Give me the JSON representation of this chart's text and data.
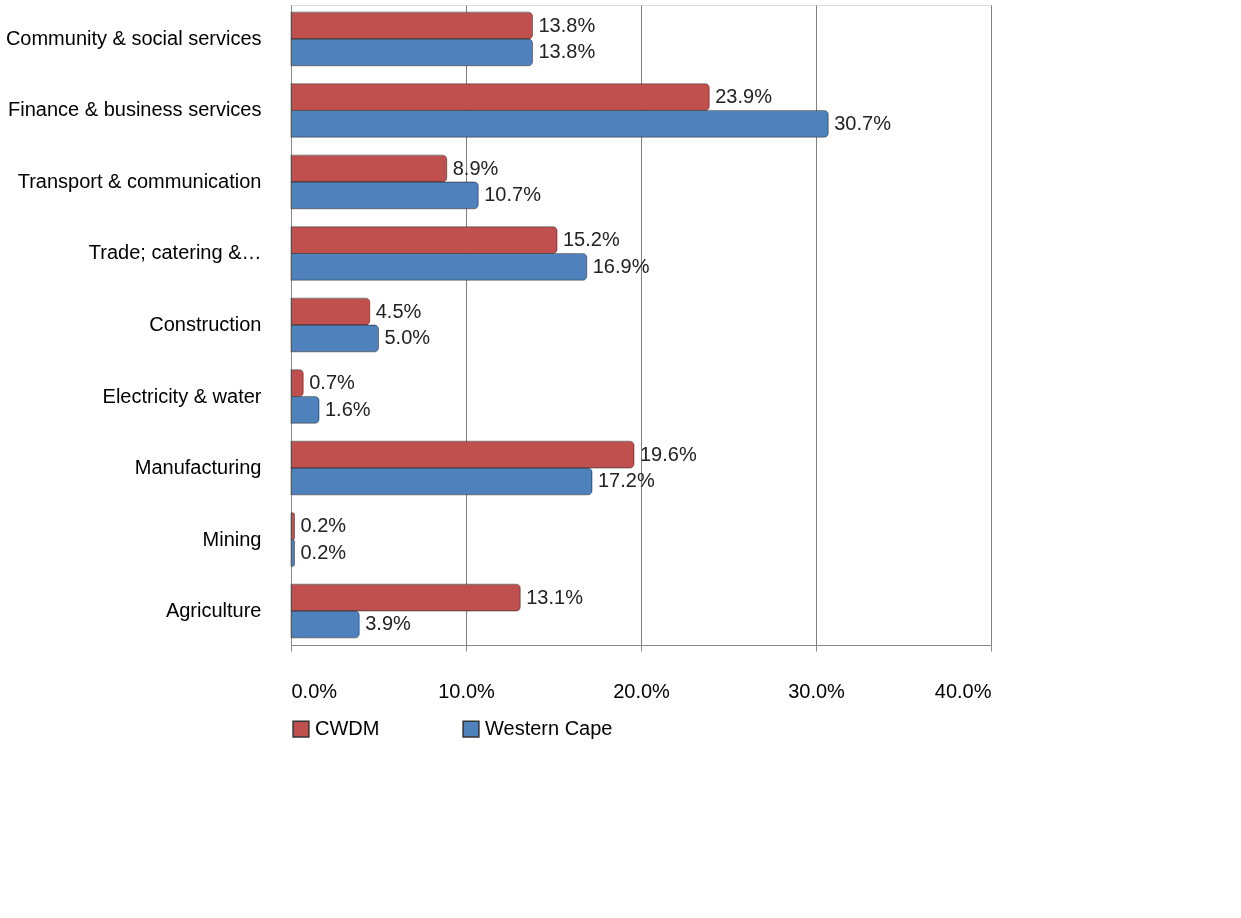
{
  "chart_data": {
    "type": "bar",
    "orientation": "horizontal",
    "categories": [
      "Community & social services",
      "Finance & business services",
      "Transport & communication",
      "Trade; catering &…",
      "Construction",
      "Electricity & water",
      "Manufacturing",
      "Mining",
      "Agriculture"
    ],
    "series": [
      {
        "name": "CWDM",
        "color": "#c0504d",
        "values": [
          13.8,
          23.9,
          8.9,
          15.2,
          4.5,
          0.7,
          19.6,
          0.2,
          13.1
        ],
        "value_labels": [
          "13.8%",
          "23.9%",
          "8.9%",
          "15.2%",
          "4.5%",
          "0.7%",
          "19.6%",
          "0.2%",
          "13.1%"
        ]
      },
      {
        "name": "Western Cape",
        "color": "#4f81bd",
        "values": [
          13.8,
          30.7,
          10.7,
          16.9,
          5.0,
          1.6,
          17.2,
          0.2,
          3.9
        ],
        "value_labels": [
          "13.8%",
          "30.7%",
          "10.7%",
          "16.9%",
          "5.0%",
          "1.6%",
          "17.2%",
          "0.2%",
          "3.9%"
        ]
      }
    ],
    "xlim": [
      0,
      40
    ],
    "xticks": [
      {
        "value": 0,
        "label": "0.0%"
      },
      {
        "value": 10,
        "label": "10.0%"
      },
      {
        "value": 20,
        "label": "20.0%"
      },
      {
        "value": 30,
        "label": "30.0%"
      },
      {
        "value": 40,
        "label": "40.0%"
      }
    ],
    "grid": "x",
    "legend": "bottom"
  }
}
